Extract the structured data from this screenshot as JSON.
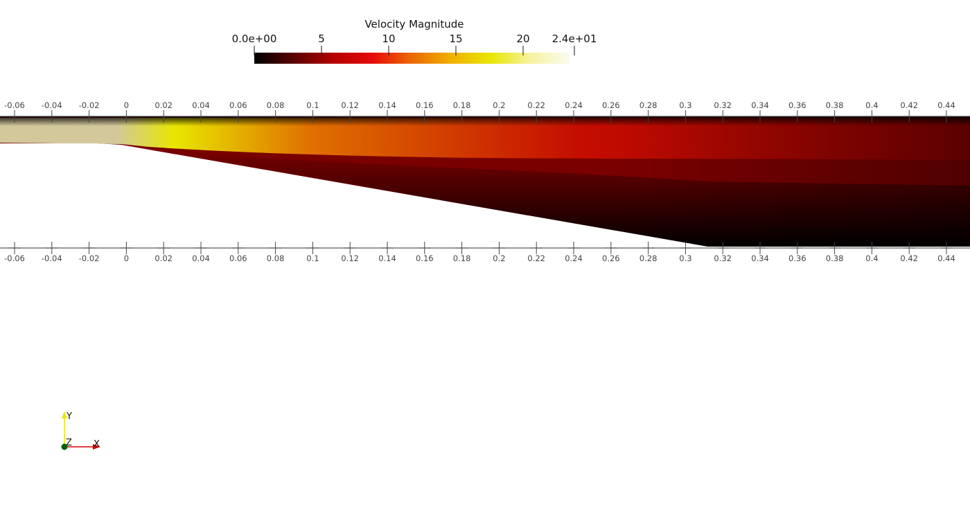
{
  "colorbar": {
    "title": "Velocity Magnitude",
    "min": 0,
    "max": 24,
    "ticks": [
      {
        "value": 0,
        "label": "0.0e+00"
      },
      {
        "value": 5,
        "label": "5"
      },
      {
        "value": 10,
        "label": "10"
      },
      {
        "value": 15,
        "label": "15"
      },
      {
        "value": 20,
        "label": "20"
      },
      {
        "value": 24,
        "label": "2.4e+01"
      }
    ],
    "colormap": [
      "#000000",
      "#5a0000",
      "#b40000",
      "#e60a0a",
      "#ea6a00",
      "#f0b000",
      "#e8e600",
      "#f6f2a0",
      "#fbfbf0"
    ]
  },
  "ruler": {
    "tick_labels": [
      "-0.06",
      "-0.04",
      "-0.02",
      "0",
      "0.02",
      "0.04",
      "0.06",
      "0.08",
      "0.1",
      "0.12",
      "0.14",
      "0.16",
      "0.18",
      "0.2",
      "0.22",
      "0.24",
      "0.26",
      "0.28",
      "0.3",
      "0.32",
      "0.34",
      "0.36",
      "0.38",
      "0.4",
      "0.42",
      "0.44"
    ]
  },
  "orientation_axes": {
    "labels": {
      "y": "Y",
      "z": "Z",
      "x": "X"
    },
    "colors": {
      "x": "#d40000",
      "y": "#e6e600",
      "z": "#006000"
    }
  },
  "field_colors": {
    "core_inlet": "#d2c89c",
    "core_throat": "#e8e600",
    "core_mid": "#e07000",
    "core_outlet": "#c40c00",
    "slow": "#000000"
  }
}
